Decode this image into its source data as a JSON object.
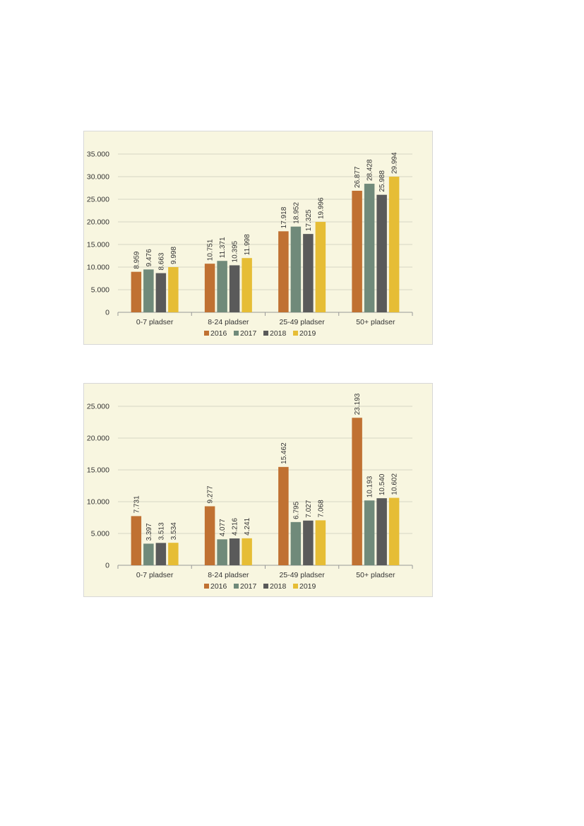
{
  "colors": {
    "2016": "#c07132",
    "2017": "#708a7a",
    "2018": "#5a5a5a",
    "2019": "#e6bd35",
    "grid": "#d6d6c4",
    "axis": "#999999",
    "text": "#333333"
  },
  "chart_data": [
    {
      "type": "bar",
      "categories": [
        "0-7 pladser",
        "8-24 pladser",
        "25-49 pladser",
        "50+ pladser"
      ],
      "series": [
        {
          "name": "2016",
          "values": [
            8959,
            10751,
            17918,
            26877
          ],
          "labels": [
            "8.959",
            "10.751",
            "17.918",
            "26.877"
          ]
        },
        {
          "name": "2017",
          "values": [
            9476,
            11371,
            18952,
            28428
          ],
          "labels": [
            "9.476",
            "11.371",
            "18.952",
            "28.428"
          ]
        },
        {
          "name": "2018",
          "values": [
            8663,
            10395,
            17325,
            25988
          ],
          "labels": [
            "8.663",
            "10.395",
            "17.325",
            "25.988"
          ]
        },
        {
          "name": "2019",
          "values": [
            9998,
            11998,
            19996,
            29994
          ],
          "labels": [
            "9.998",
            "11.998",
            "19.996",
            "29.994"
          ]
        }
      ],
      "yticks": [
        0,
        5000,
        10000,
        15000,
        20000,
        25000,
        30000,
        35000
      ],
      "ytick_labels": [
        "0",
        "5.000",
        "10.000",
        "15.000",
        "20.000",
        "25.000",
        "30.000",
        "35.000"
      ],
      "ylim": [
        0,
        35000
      ],
      "grid": true,
      "legend": "bottom"
    },
    {
      "type": "bar",
      "categories": [
        "0-7 pladser",
        "8-24 pladser",
        "25-49 pladser",
        "50+ pladser"
      ],
      "series": [
        {
          "name": "2016",
          "values": [
            7731,
            9277,
            15462,
            23193
          ],
          "labels": [
            "7.731",
            "9.277",
            "15.462",
            "23.193"
          ]
        },
        {
          "name": "2017",
          "values": [
            3397,
            4077,
            6795,
            10193
          ],
          "labels": [
            "3.397",
            "4.077",
            "6.795",
            "10.193"
          ]
        },
        {
          "name": "2018",
          "values": [
            3513,
            4216,
            7027,
            10540
          ],
          "labels": [
            "3.513",
            "4.216",
            "7.027",
            "10.540"
          ]
        },
        {
          "name": "2019",
          "values": [
            3534,
            4241,
            7068,
            10602
          ],
          "labels": [
            "3.534",
            "4.241",
            "7.068",
            "10.602"
          ]
        }
      ],
      "yticks": [
        0,
        5000,
        10000,
        15000,
        20000,
        25000
      ],
      "ytick_labels": [
        "0",
        "5.000",
        "10.000",
        "15.000",
        "20.000",
        "25.000"
      ],
      "ylim": [
        0,
        25000
      ],
      "grid": true,
      "legend": "bottom"
    }
  ]
}
